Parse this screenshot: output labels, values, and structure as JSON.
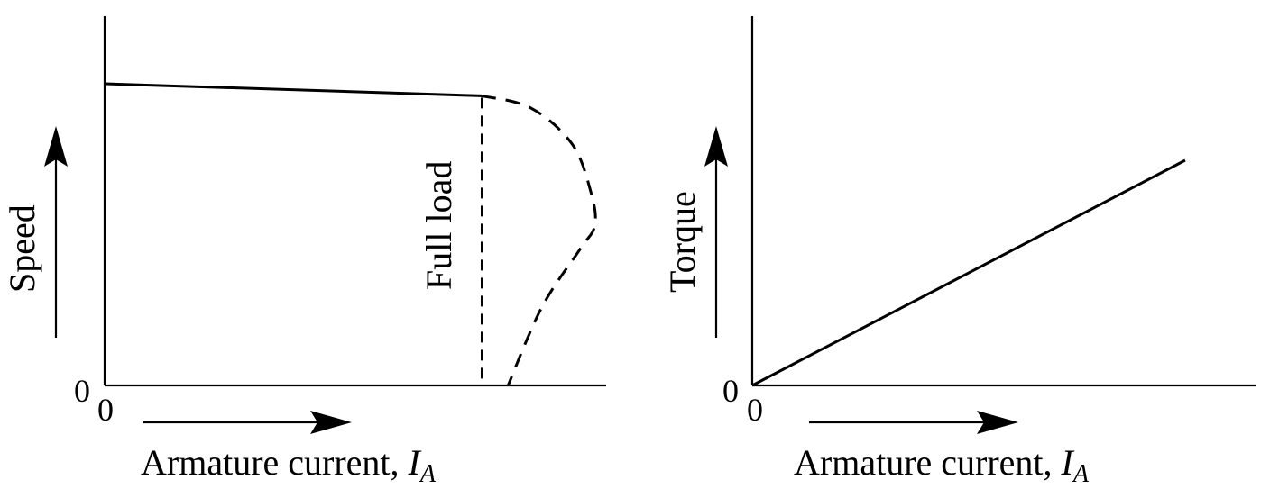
{
  "chart_data": [
    {
      "type": "line",
      "ylabel": "Speed",
      "xlabel": "Armature current, ",
      "xlabel_symbol": "I",
      "xlabel_subscript": "A",
      "origin_x_label": "0",
      "origin_y_label": "0",
      "annotation": "Full load",
      "series": [
        {
          "style": "solid",
          "x": [
            0,
            1.0
          ],
          "y": [
            1.0,
            0.96
          ]
        },
        {
          "style": "dashed",
          "x": [
            1.0,
            1.13,
            1.24,
            1.29,
            1.3,
            1.26,
            1.16,
            1.07
          ],
          "y": [
            0.96,
            0.92,
            0.8,
            0.64,
            0.53,
            0.45,
            0.26,
            0.0
          ]
        }
      ],
      "marker_line": {
        "x": 1.0,
        "style": "dashed"
      }
    },
    {
      "type": "line",
      "ylabel": "Torque",
      "xlabel": "Armature current, ",
      "xlabel_symbol": "I",
      "xlabel_subscript": "A",
      "origin_x_label": "0",
      "origin_y_label": "0",
      "series": [
        {
          "style": "solid",
          "x": [
            0,
            1.0
          ],
          "y": [
            0,
            1.0
          ]
        }
      ]
    }
  ]
}
